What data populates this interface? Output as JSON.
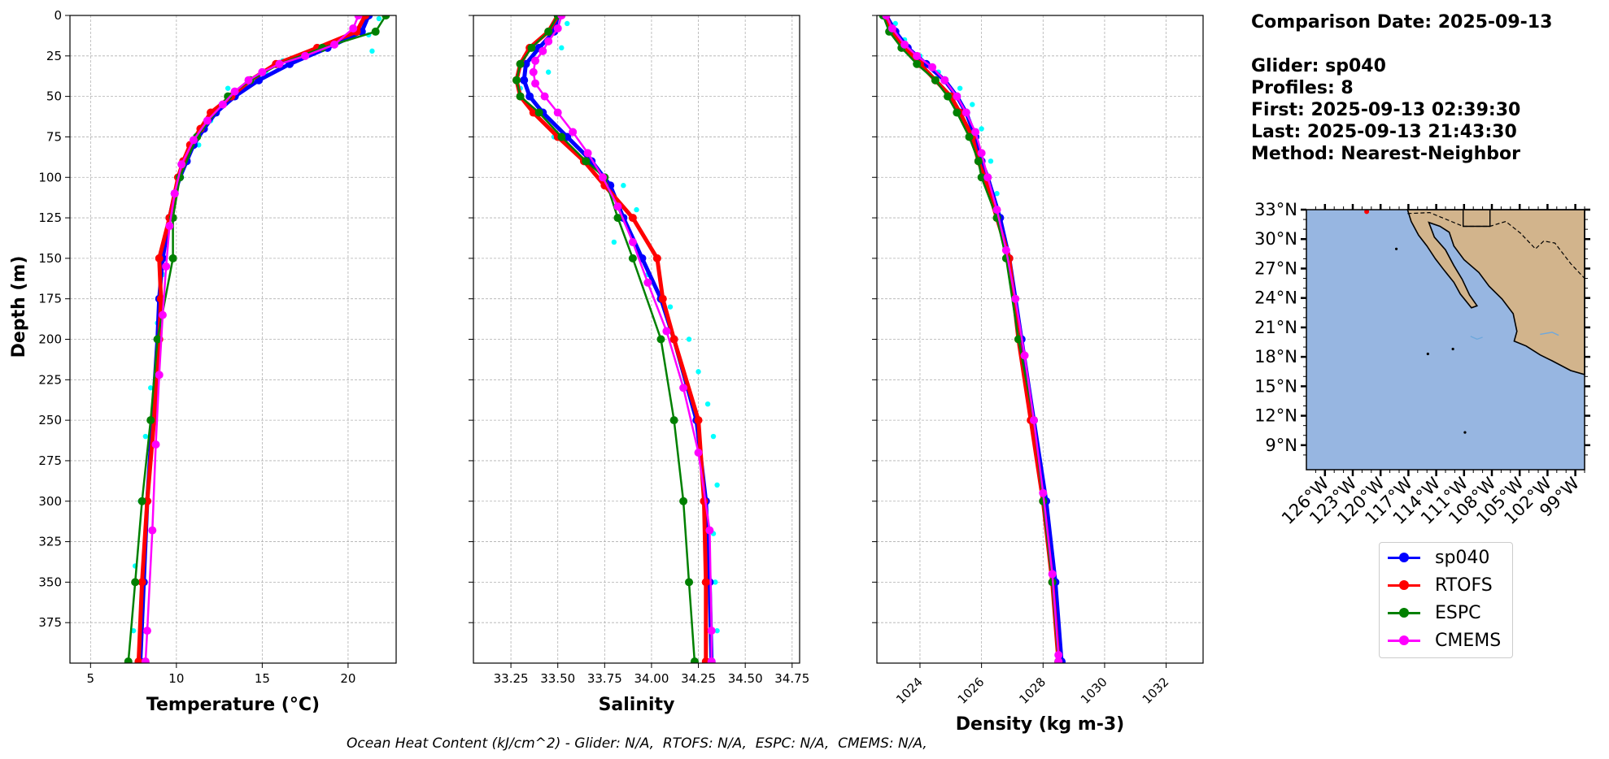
{
  "chart_data": [
    {
      "type": "line",
      "name": "temperature",
      "xlabel": "Temperature (°C)",
      "ylabel": "Depth (m)",
      "xlim": [
        3.8,
        22.8
      ],
      "ylim": [
        400,
        0
      ],
      "xticks": [
        5,
        10,
        15,
        20
      ],
      "yticks": [
        0,
        25,
        50,
        75,
        100,
        125,
        150,
        175,
        200,
        225,
        250,
        275,
        300,
        325,
        350,
        375
      ],
      "grid": true,
      "series": [
        {
          "name": "sp040",
          "color": "#0000ff",
          "depth": [
            0,
            10,
            20,
            30,
            40,
            50,
            60,
            70,
            80,
            90,
            100,
            110,
            125,
            150,
            175,
            200,
            250,
            300,
            350,
            399
          ],
          "values": [
            21.2,
            20.8,
            18.8,
            16.6,
            14.8,
            13.4,
            12.3,
            11.6,
            11.0,
            10.6,
            10.2,
            9.9,
            9.6,
            9.2,
            9.0,
            8.9,
            8.6,
            8.3,
            8.1,
            7.9
          ]
        },
        {
          "name": "RTOFS",
          "color": "#ff0000",
          "depth": [
            0,
            10,
            20,
            30,
            40,
            50,
            60,
            70,
            80,
            90,
            100,
            125,
            150,
            175,
            200,
            250,
            300,
            350,
            399
          ],
          "values": [
            21.0,
            20.5,
            18.2,
            15.8,
            14.3,
            13.2,
            12.0,
            11.4,
            10.8,
            10.4,
            10.1,
            9.6,
            9.0,
            9.1,
            9.0,
            8.7,
            8.3,
            8.0,
            7.8
          ]
        },
        {
          "name": "ESPC",
          "color": "#008000",
          "depth": [
            0,
            10,
            20,
            30,
            40,
            50,
            75,
            100,
            125,
            150,
            200,
            250,
            300,
            350,
            399
          ],
          "values": [
            22.2,
            21.6,
            18.5,
            16.0,
            14.3,
            13.0,
            11.2,
            10.2,
            9.8,
            9.8,
            8.9,
            8.5,
            8.0,
            7.6,
            7.2
          ]
        },
        {
          "name": "CMEMS",
          "color": "#ff00ff",
          "depth": [
            0,
            8,
            18,
            25,
            30,
            35,
            40,
            47,
            55,
            65,
            77,
            92,
            110,
            130,
            155,
            185,
            222,
            265,
            318,
            380,
            399
          ],
          "values": [
            20.6,
            20.3,
            19.2,
            17.5,
            16.0,
            15.0,
            14.2,
            13.4,
            12.7,
            11.8,
            11.0,
            10.3,
            9.9,
            9.6,
            9.4,
            9.2,
            9.0,
            8.8,
            8.6,
            8.3,
            8.2
          ]
        }
      ],
      "scatter": {
        "name": "glider-profile-points",
        "color": "#00ffff",
        "depth": [
          2,
          12,
          22,
          28,
          35,
          45,
          55,
          65,
          80,
          100,
          130,
          160,
          190,
          230,
          260,
          300,
          340,
          380
        ],
        "values": [
          21.8,
          21.2,
          21.4,
          16.2,
          15.2,
          13.0,
          12.6,
          12.0,
          11.3,
          10.3,
          9.6,
          9.2,
          8.9,
          8.5,
          8.2,
          7.9,
          7.6,
          7.5
        ]
      }
    },
    {
      "type": "line",
      "name": "salinity",
      "xlabel": "Salinity",
      "ylabel": "",
      "xlim": [
        33.05,
        34.79
      ],
      "ylim": [
        400,
        0
      ],
      "xticks": [
        33.25,
        33.5,
        33.75,
        34.0,
        34.25,
        34.5,
        34.75
      ],
      "xticklabels": [
        "33.25",
        "33.50",
        "33.75",
        "34.00",
        "34.25",
        "34.50",
        "34.75"
      ],
      "grid": true,
      "series": [
        {
          "name": "sp040",
          "color": "#0000ff",
          "depth": [
            0,
            10,
            20,
            30,
            40,
            50,
            60,
            75,
            90,
            105,
            125,
            150,
            175,
            200,
            250,
            300,
            350,
            399
          ],
          "values": [
            33.5,
            33.48,
            33.4,
            33.33,
            33.32,
            33.35,
            33.42,
            33.55,
            33.68,
            33.78,
            33.85,
            33.95,
            34.05,
            34.12,
            34.24,
            34.29,
            34.31,
            34.32
          ]
        },
        {
          "name": "RTOFS",
          "color": "#ff0000",
          "depth": [
            0,
            10,
            20,
            30,
            40,
            50,
            60,
            75,
            90,
            105,
            125,
            150,
            175,
            200,
            250,
            300,
            350,
            399
          ],
          "values": [
            33.5,
            33.45,
            33.35,
            33.3,
            33.28,
            33.3,
            33.37,
            33.5,
            33.64,
            33.75,
            33.9,
            34.03,
            34.06,
            34.12,
            34.25,
            34.28,
            34.29,
            34.29
          ]
        },
        {
          "name": "ESPC",
          "color": "#008000",
          "depth": [
            0,
            10,
            20,
            30,
            40,
            50,
            60,
            75,
            90,
            100,
            125,
            150,
            200,
            250,
            300,
            350,
            399
          ],
          "values": [
            33.5,
            33.45,
            33.36,
            33.3,
            33.28,
            33.3,
            33.4,
            33.52,
            33.65,
            33.75,
            33.82,
            33.9,
            34.05,
            34.12,
            34.17,
            34.2,
            34.23
          ]
        },
        {
          "name": "CMEMS",
          "color": "#ff00ff",
          "depth": [
            0,
            8,
            16,
            22,
            28,
            35,
            42,
            50,
            60,
            72,
            85,
            100,
            118,
            140,
            165,
            195,
            230,
            270,
            318,
            380,
            399
          ],
          "values": [
            33.52,
            33.5,
            33.45,
            33.42,
            33.38,
            33.37,
            33.38,
            33.43,
            33.5,
            33.58,
            33.66,
            33.74,
            33.82,
            33.9,
            33.98,
            34.08,
            34.17,
            34.25,
            34.31,
            34.32,
            34.32
          ]
        }
      ],
      "scatter": {
        "name": "glider-profile-points",
        "color": "#00ffff",
        "depth": [
          5,
          20,
          35,
          45,
          60,
          75,
          90,
          105,
          120,
          140,
          160,
          180,
          200,
          220,
          240,
          260,
          290,
          320,
          350,
          380
        ],
        "values": [
          33.55,
          33.52,
          33.45,
          33.3,
          33.4,
          33.48,
          33.65,
          33.85,
          33.92,
          33.8,
          33.98,
          34.1,
          34.2,
          34.25,
          34.3,
          34.33,
          34.35,
          34.33,
          34.34,
          34.35
        ]
      }
    },
    {
      "type": "line",
      "name": "density",
      "xlabel": "Density (kg m-3)",
      "ylabel": "",
      "xlim": [
        1022.6,
        1033.2
      ],
      "ylim": [
        400,
        0
      ],
      "xticks": [
        1024,
        1026,
        1028,
        1030,
        1032
      ],
      "grid": true,
      "series": [
        {
          "name": "sp040",
          "color": "#0000ff",
          "depth": [
            0,
            10,
            20,
            30,
            40,
            50,
            60,
            75,
            90,
            100,
            125,
            150,
            200,
            250,
            300,
            350,
            399
          ],
          "values": [
            1022.9,
            1023.2,
            1023.6,
            1024.2,
            1024.8,
            1025.2,
            1025.5,
            1025.8,
            1026.0,
            1026.2,
            1026.6,
            1026.9,
            1027.3,
            1027.7,
            1028.1,
            1028.4,
            1028.6
          ]
        },
        {
          "name": "RTOFS",
          "color": "#ff0000",
          "depth": [
            0,
            10,
            20,
            30,
            40,
            50,
            60,
            75,
            90,
            100,
            125,
            150,
            200,
            250,
            300,
            350,
            399
          ],
          "values": [
            1022.9,
            1023.1,
            1023.5,
            1024.0,
            1024.5,
            1025.0,
            1025.3,
            1025.7,
            1025.9,
            1026.1,
            1026.5,
            1026.9,
            1027.2,
            1027.6,
            1028.0,
            1028.3,
            1028.5
          ]
        },
        {
          "name": "ESPC",
          "color": "#008000",
          "depth": [
            0,
            10,
            20,
            30,
            40,
            50,
            60,
            75,
            90,
            100,
            125,
            150,
            200,
            250,
            300,
            350,
            399
          ],
          "values": [
            1022.8,
            1023.0,
            1023.4,
            1023.9,
            1024.5,
            1024.9,
            1025.2,
            1025.6,
            1025.9,
            1026.0,
            1026.5,
            1026.8,
            1027.2,
            1027.7,
            1028.0,
            1028.3,
            1028.5
          ]
        },
        {
          "name": "CMEMS",
          "color": "#ff00ff",
          "depth": [
            0,
            8,
            18,
            25,
            32,
            40,
            50,
            60,
            72,
            85,
            100,
            120,
            145,
            175,
            210,
            250,
            295,
            345,
            395,
            399
          ],
          "values": [
            1022.9,
            1023.1,
            1023.5,
            1023.9,
            1024.4,
            1024.8,
            1025.2,
            1025.5,
            1025.8,
            1026.0,
            1026.2,
            1026.5,
            1026.8,
            1027.1,
            1027.4,
            1027.7,
            1028.0,
            1028.3,
            1028.5,
            1028.5
          ]
        }
      ],
      "scatter": {
        "name": "glider-profile-points",
        "color": "#00ffff",
        "depth": [
          5,
          15,
          25,
          35,
          45,
          55,
          70,
          90,
          110
        ],
        "values": [
          1023.2,
          1023.5,
          1024.0,
          1024.6,
          1025.3,
          1025.7,
          1026.0,
          1026.3,
          1026.5
        ]
      }
    }
  ],
  "info": {
    "date_line": "Comparison Date: 2025-09-13",
    "glider_line": "Glider: sp040",
    "profiles_line": "Profiles: 8",
    "first_line": "First: 2025-09-13 02:39:30",
    "last_line": "Last: 2025-09-13 21:43:30",
    "method_line": "Method: Nearest-Neighbor"
  },
  "map": {
    "lat_labels": [
      "33°N",
      "30°N",
      "27°N",
      "24°N",
      "21°N",
      "18°N",
      "15°N",
      "12°N",
      "9°N"
    ],
    "lon_labels": [
      "126°W",
      "123°W",
      "120°W",
      "117°W",
      "114°W",
      "111°W",
      "108°W",
      "105°W",
      "102°W",
      "99°W"
    ],
    "ocean_color": "#97b6e1",
    "land_color": "#d2b48c"
  },
  "legend": {
    "items": [
      {
        "label": "sp040",
        "color": "#0000ff"
      },
      {
        "label": "RTOFS",
        "color": "#ff0000"
      },
      {
        "label": "ESPC",
        "color": "#008000"
      },
      {
        "label": "CMEMS",
        "color": "#ff00ff"
      }
    ]
  },
  "footer": {
    "ohc_text": "Ocean Heat Content (kJ/cm^2) - Glider: N/A,  RTOFS: N/A,  ESPC: N/A,  CMEMS: N/A,"
  }
}
